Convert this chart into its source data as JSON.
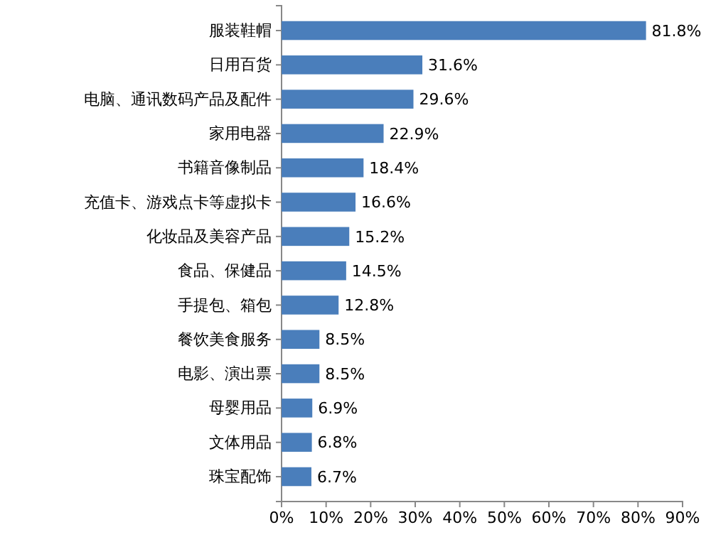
{
  "chart_data": {
    "type": "bar",
    "orientation": "horizontal",
    "categories": [
      "服装鞋帽",
      "日用百货",
      "电脑、通讯数码产品及配件",
      "家用电器",
      "书籍音像制品",
      "充值卡、游戏点卡等虚拟卡",
      "化妆品及美容产品",
      "食品、保健品",
      "手提包、箱包",
      "餐饮美食服务",
      "电影、演出票",
      "母婴用品",
      "文体用品",
      "珠宝配饰"
    ],
    "values": [
      81.8,
      31.6,
      29.6,
      22.9,
      18.4,
      16.6,
      15.2,
      14.5,
      12.8,
      8.5,
      8.5,
      6.9,
      6.8,
      6.7
    ],
    "value_labels": [
      "81.8%",
      "31.6%",
      "29.6%",
      "22.9%",
      "18.4%",
      "16.6%",
      "15.2%",
      "14.5%",
      "12.8%",
      "8.5%",
      "8.5%",
      "6.9%",
      "6.8%",
      "6.7%"
    ],
    "color": "#4a7ebb",
    "xlim": [
      0,
      90
    ],
    "xticks": [
      {
        "value": 0,
        "label": "0%"
      },
      {
        "value": 10,
        "label": "10%"
      },
      {
        "value": 20,
        "label": "20%"
      },
      {
        "value": 30,
        "label": "30%"
      },
      {
        "value": 40,
        "label": "40%"
      },
      {
        "value": 50,
        "label": "50%"
      },
      {
        "value": 60,
        "label": "60%"
      },
      {
        "value": 70,
        "label": "70%"
      },
      {
        "value": 80,
        "label": "80%"
      },
      {
        "value": 90,
        "label": "90%"
      }
    ],
    "grid": false
  }
}
